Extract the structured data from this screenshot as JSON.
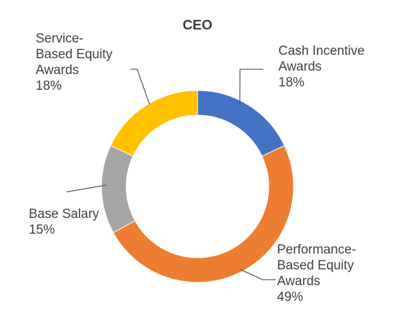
{
  "chart_data": {
    "type": "pie",
    "variant": "donut",
    "title": "CEO",
    "legend": "none",
    "slices": [
      {
        "name": "Cash Incentive Awards",
        "label_lines": [
          "Cash Incentive",
          "Awards"
        ],
        "value": 18,
        "value_label": "18%",
        "color": "#4472C4"
      },
      {
        "name": "Performance-Based Equity Awards",
        "label_lines": [
          "Performance-",
          "Based Equity",
          "Awards"
        ],
        "value": 49,
        "value_label": "49%",
        "color": "#ED7D31"
      },
      {
        "name": "Base Salary",
        "label_lines": [
          "Base Salary"
        ],
        "value": 15,
        "value_label": "15%",
        "color": "#A5A5A5"
      },
      {
        "name": "Service-Based Equity Awards",
        "label_lines": [
          "Service-",
          "Based Equity",
          "Awards"
        ],
        "value": 18,
        "value_label": "18%",
        "color": "#FFC000"
      }
    ]
  }
}
